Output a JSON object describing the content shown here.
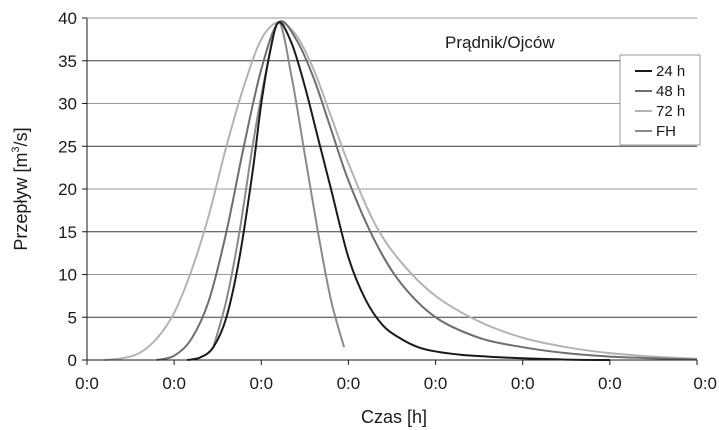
{
  "chart_data": {
    "type": "line",
    "title": "Prądnik/Ojców",
    "xlabel": "Czas [h]",
    "ylabel": {
      "pre": "Przepływ [m",
      "sup": "3",
      "post": "/s]"
    },
    "x_tick_labels": [
      "0:0",
      "0:0",
      "0:0",
      "0:0",
      "0:0",
      "0:0",
      "0:0",
      "0:0"
    ],
    "xlim": [
      0,
      7
    ],
    "ylim": [
      0,
      40
    ],
    "y_ticks": [
      0,
      5,
      10,
      15,
      20,
      25,
      30,
      35,
      40
    ],
    "grid": "horizontal",
    "legend_position": "top-right",
    "series": [
      {
        "name": "24 h",
        "color": "#1a1a1a",
        "x": [
          1.15,
          1.3,
          1.45,
          1.6,
          1.75,
          1.9,
          2.0,
          2.1,
          2.2,
          2.35,
          2.5,
          2.65,
          2.8,
          3.0,
          3.2,
          3.4,
          3.6,
          3.8,
          4.0,
          4.3,
          4.6,
          5.0,
          5.5,
          6.0
        ],
        "y": [
          0,
          0.3,
          1.5,
          5.0,
          12.0,
          22.0,
          30.0,
          36.0,
          39.5,
          37.0,
          32.0,
          26.0,
          20.0,
          12.0,
          7.0,
          4.0,
          2.5,
          1.5,
          1.0,
          0.6,
          0.4,
          0.2,
          0.05,
          0
        ]
      },
      {
        "name": "48 h",
        "color": "#6e6e6e",
        "x": [
          0.8,
          1.0,
          1.2,
          1.4,
          1.6,
          1.8,
          2.0,
          2.2,
          2.4,
          2.6,
          2.8,
          3.0,
          3.3,
          3.6,
          4.0,
          4.5,
          5.0,
          5.5,
          6.0,
          6.5,
          7.0
        ],
        "y": [
          0,
          0.5,
          2.5,
          7.0,
          15.0,
          25.0,
          34.0,
          39.5,
          37.5,
          33.0,
          27.0,
          21.0,
          14.0,
          9.0,
          5.0,
          2.6,
          1.5,
          0.8,
          0.4,
          0.2,
          0.05
        ]
      },
      {
        "name": "72 h",
        "color": "#b3b3b3",
        "x": [
          0.2,
          0.4,
          0.6,
          0.8,
          1.0,
          1.2,
          1.4,
          1.6,
          1.8,
          2.0,
          2.2,
          2.4,
          2.6,
          2.8,
          3.0,
          3.3,
          3.6,
          4.0,
          4.5,
          5.0,
          5.5,
          6.0,
          6.5,
          7.0
        ],
        "y": [
          0,
          0.2,
          0.8,
          2.5,
          5.5,
          10.5,
          17.0,
          25.0,
          32.0,
          37.5,
          39.5,
          38.0,
          34.0,
          28.5,
          23.0,
          16.0,
          11.5,
          7.5,
          4.5,
          2.6,
          1.5,
          0.8,
          0.4,
          0.15
        ]
      },
      {
        "name": "FH",
        "color": "#8a8a8a",
        "x": [
          1.45,
          1.6,
          1.75,
          1.9,
          2.05,
          2.2,
          2.35,
          2.5,
          2.65,
          2.8,
          2.95
        ],
        "y": [
          1.5,
          7.0,
          15.0,
          25.0,
          33.5,
          39.5,
          33.0,
          24.0,
          15.0,
          7.0,
          1.5
        ]
      }
    ]
  }
}
